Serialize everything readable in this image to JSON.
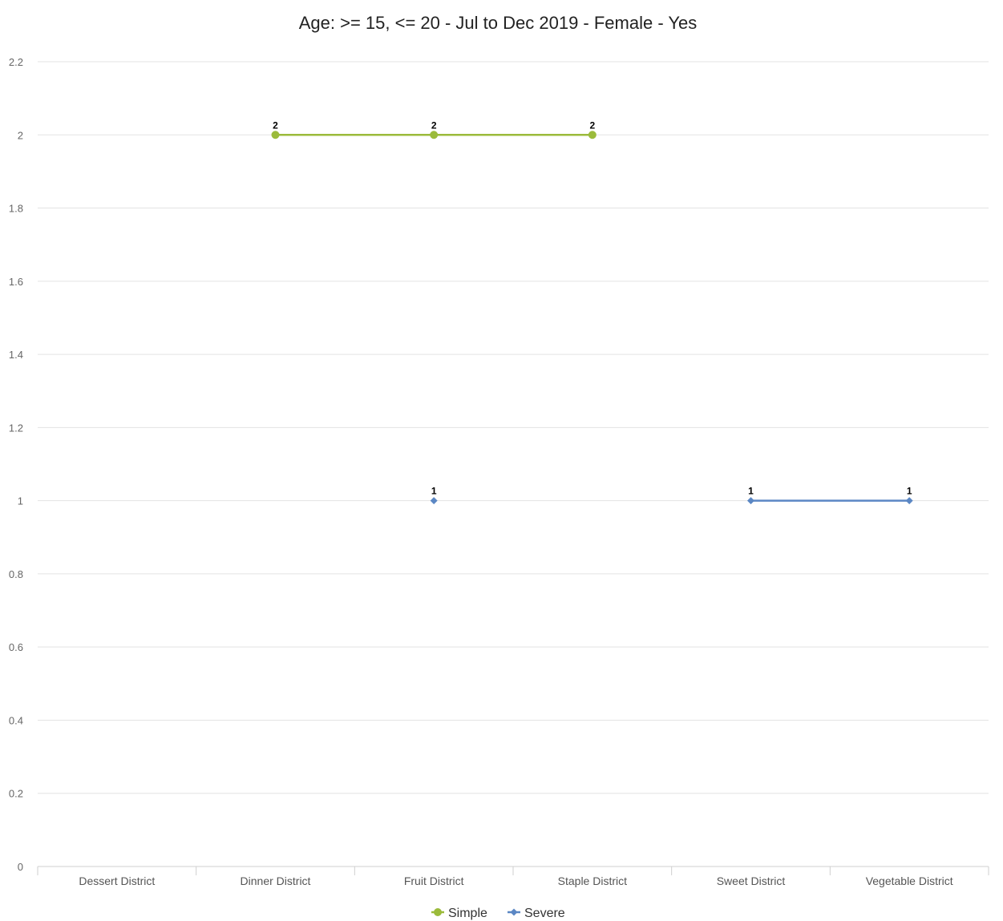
{
  "chart_data": {
    "type": "line",
    "title": "Age: >= 15, <= 20 - Jul to Dec 2019 - Female - Yes",
    "xlabel": "",
    "ylabel": "",
    "categories": [
      "Dessert District",
      "Dinner District",
      "Fruit District",
      "Staple District",
      "Sweet District",
      "Vegetable District"
    ],
    "ylim": [
      0,
      2.2
    ],
    "yticks": [
      "0",
      "0.2",
      "0.4",
      "0.6",
      "0.8",
      "1",
      "1.2",
      "1.4",
      "1.6",
      "1.8",
      "2",
      "2.2"
    ],
    "grid": true,
    "legend_position": "bottom-center",
    "series": [
      {
        "name": "Simple",
        "color": "#9bbb3b",
        "marker": "circle",
        "values": [
          null,
          2,
          2,
          2,
          null,
          null
        ]
      },
      {
        "name": "Severe",
        "color": "#5b87c4",
        "marker": "diamond",
        "values": [
          null,
          null,
          1,
          null,
          1,
          1
        ]
      }
    ]
  }
}
